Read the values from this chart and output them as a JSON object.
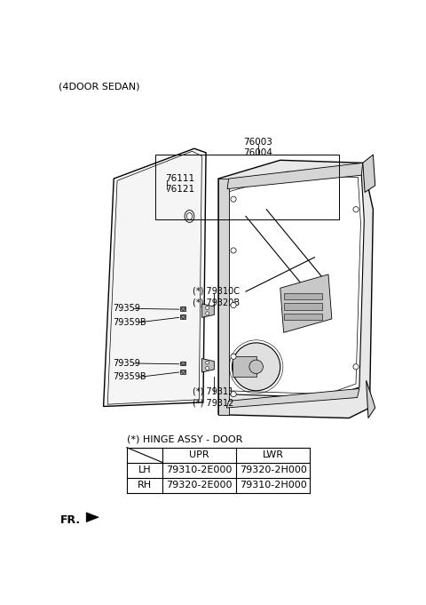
{
  "title_text": "(4DOOR SEDAN)",
  "bg_color": "#ffffff",
  "label_76003_76004": "76003\n76004",
  "label_76111_76121": "76111\n76121",
  "label_79310C_79320B": "(*) 79310C\n(*) 79320B",
  "label_79311_79312": "(*) 79311\n(*) 79312",
  "label_79359_upper": "79359",
  "label_79359B_upper": "79359B",
  "label_79359_lower": "79359",
  "label_79359B_lower": "79359B",
  "table_title": "(*) HINGE ASSY - DOOR",
  "table_headers": [
    "",
    "UPR",
    "LWR"
  ],
  "table_rows": [
    [
      "LH",
      "79310-2E000",
      "79320-2H000"
    ],
    [
      "RH",
      "79320-2E000",
      "79310-2H000"
    ]
  ],
  "fr_label": "FR.",
  "text_color": "#000000",
  "gray_light": "#d0d0d0",
  "gray_mid": "#b0b0b0",
  "line_color": "#000000"
}
